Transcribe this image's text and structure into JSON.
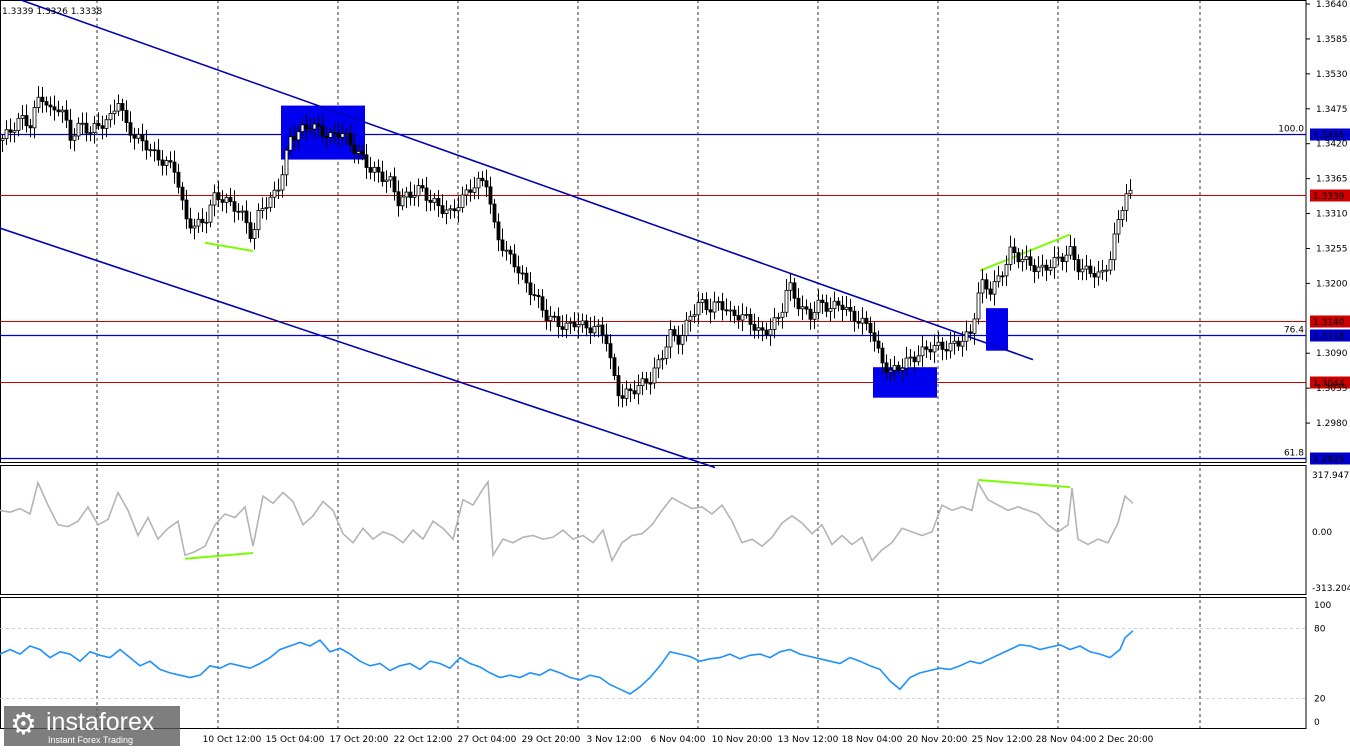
{
  "header": {
    "ohlc_text": "1.3339 1.3326 1.3338"
  },
  "watermark": {
    "logo_icon": "gear-icon",
    "brand": "instaforex",
    "tagline": "Instant Forex Trading"
  },
  "chart_data": [
    {
      "type": "candlestick",
      "panel": "price",
      "ylim": [
        1.2925,
        1.364
      ],
      "yticks": [
        "1.3640",
        "1.3585",
        "1.3530",
        "1.3475",
        "1.3420",
        "1.3365",
        "1.3310",
        "1.3255",
        "1.3200",
        "1.3090",
        "1.3035",
        "1.2980"
      ],
      "horizontal_lines": [
        {
          "value": 1.3435,
          "label": "1.3435",
          "fib": "100.0",
          "color": "#0000cc"
        },
        {
          "value": 1.3339,
          "label": "1.3339",
          "color": "#cc0000"
        },
        {
          "value": 1.314,
          "label": "1.3140",
          "color": "#cc0000"
        },
        {
          "value": 1.3118,
          "label": "1.3118",
          "fib": "76.4",
          "color": "#0000cc"
        },
        {
          "value": 1.3044,
          "label": "1.3044",
          "color": "#cc0000"
        },
        {
          "value": 1.2925,
          "label": "1.2925",
          "fib": "61.8",
          "color": "#0000cc"
        }
      ],
      "x_labels": [
        "10 Oct 12:00",
        "15 Oct 04:00",
        "17 Oct 20:00",
        "22 Oct 12:00",
        "27 Oct 04:00",
        "29 Oct 20:00",
        "3 Nov 12:00",
        "6 Nov 04:00",
        "10 Nov 20:00",
        "13 Nov 12:00",
        "18 Nov 04:00",
        "20 Nov 20:00",
        "25 Nov 12:00",
        "28 Nov 04:00",
        "2 Dec 20:00"
      ],
      "close_path": [
        [
          0,
          1.3425
        ],
        [
          10,
          1.344
        ],
        [
          20,
          1.346
        ],
        [
          30,
          1.345
        ],
        [
          40,
          1.35
        ],
        [
          50,
          1.347
        ],
        [
          60,
          1.348
        ],
        [
          70,
          1.343
        ],
        [
          80,
          1.345
        ],
        [
          90,
          1.344
        ],
        [
          100,
          1.345
        ],
        [
          110,
          1.346
        ],
        [
          118,
          1.349
        ],
        [
          125,
          1.345
        ],
        [
          135,
          1.343
        ],
        [
          145,
          1.342
        ],
        [
          155,
          1.34
        ],
        [
          165,
          1.339
        ],
        [
          175,
          1.338
        ],
        [
          185,
          1.33
        ],
        [
          195,
          1.329
        ],
        [
          205,
          1.33
        ],
        [
          215,
          1.334
        ],
        [
          225,
          1.333
        ],
        [
          235,
          1.332
        ],
        [
          245,
          1.33
        ],
        [
          252,
          1.327
        ],
        [
          260,
          1.332
        ],
        [
          270,
          1.333
        ],
        [
          280,
          1.336
        ],
        [
          290,
          1.343
        ],
        [
          300,
          1.344
        ],
        [
          310,
          1.345
        ],
        [
          320,
          1.344
        ],
        [
          330,
          1.343
        ],
        [
          340,
          1.344
        ],
        [
          350,
          1.342
        ],
        [
          360,
          1.34
        ],
        [
          370,
          1.338
        ],
        [
          380,
          1.337
        ],
        [
          390,
          1.336
        ],
        [
          398,
          1.333
        ],
        [
          410,
          1.334
        ],
        [
          420,
          1.335
        ],
        [
          430,
          1.333
        ],
        [
          440,
          1.332
        ],
        [
          450,
          1.331
        ],
        [
          460,
          1.333
        ],
        [
          470,
          1.335
        ],
        [
          480,
          1.336
        ],
        [
          486,
          1.336
        ],
        [
          495,
          1.328
        ],
        [
          505,
          1.325
        ],
        [
          515,
          1.323
        ],
        [
          525,
          1.32
        ],
        [
          535,
          1.318
        ],
        [
          545,
          1.315
        ],
        [
          555,
          1.314
        ],
        [
          565,
          1.313
        ],
        [
          575,
          1.314
        ],
        [
          585,
          1.313
        ],
        [
          595,
          1.313
        ],
        [
          605,
          1.312
        ],
        [
          612,
          1.306
        ],
        [
          620,
          1.302
        ],
        [
          630,
          1.303
        ],
        [
          640,
          1.304
        ],
        [
          650,
          1.305
        ],
        [
          660,
          1.308
        ],
        [
          670,
          1.312
        ],
        [
          680,
          1.311
        ],
        [
          690,
          1.315
        ],
        [
          700,
          1.317
        ],
        [
          710,
          1.316
        ],
        [
          720,
          1.317
        ],
        [
          730,
          1.315
        ],
        [
          740,
          1.315
        ],
        [
          750,
          1.314
        ],
        [
          760,
          1.312
        ],
        [
          770,
          1.313
        ],
        [
          780,
          1.315
        ],
        [
          788,
          1.32
        ],
        [
          800,
          1.316
        ],
        [
          810,
          1.315
        ],
        [
          820,
          1.317
        ],
        [
          830,
          1.316
        ],
        [
          840,
          1.317
        ],
        [
          850,
          1.315
        ],
        [
          860,
          1.314
        ],
        [
          870,
          1.313
        ],
        [
          880,
          1.308
        ],
        [
          890,
          1.306
        ],
        [
          900,
          1.307
        ],
        [
          910,
          1.308
        ],
        [
          920,
          1.309
        ],
        [
          930,
          1.31
        ],
        [
          940,
          1.31
        ],
        [
          950,
          1.31
        ],
        [
          960,
          1.311
        ],
        [
          970,
          1.312
        ],
        [
          980,
          1.32
        ],
        [
          990,
          1.319
        ],
        [
          1000,
          1.321
        ],
        [
          1010,
          1.325
        ],
        [
          1020,
          1.324
        ],
        [
          1030,
          1.323
        ],
        [
          1040,
          1.322
        ],
        [
          1050,
          1.323
        ],
        [
          1060,
          1.324
        ],
        [
          1070,
          1.325
        ],
        [
          1080,
          1.322
        ],
        [
          1090,
          1.322
        ],
        [
          1100,
          1.321
        ],
        [
          1110,
          1.324
        ],
        [
          1118,
          1.33
        ],
        [
          1125,
          1.334
        ],
        [
          1133,
          1.3338
        ]
      ],
      "channel_lines": [
        {
          "from": [
            0,
            1.3658
          ],
          "to": [
            1033,
            1.308
          ]
        },
        {
          "from": [
            0,
            1.3287
          ],
          "to": [
            715,
            1.291
          ]
        }
      ],
      "boxes": [
        {
          "x": [
            281,
            365
          ],
          "y": [
            1.3395,
            1.348
          ]
        },
        {
          "x": [
            873,
            937
          ],
          "y": [
            1.302,
            1.3068
          ]
        },
        {
          "x": [
            986,
            1008
          ],
          "y": [
            1.3094,
            1.3161
          ]
        }
      ],
      "divergence_lines": [
        {
          "from": [
            205,
            1.3264
          ],
          "to": [
            253,
            1.3251
          ]
        },
        {
          "from": [
            980,
            1.322
          ],
          "to": [
            1070,
            1.3277
          ]
        }
      ]
    },
    {
      "type": "line",
      "panel": "cci",
      "ylim": [
        -313.204,
        317.9471
      ],
      "yticks": [
        "317.9471",
        "0.00",
        "-313.204"
      ],
      "x": [
        0,
        10,
        20,
        30,
        38,
        48,
        58,
        68,
        78,
        88,
        98,
        108,
        118,
        128,
        138,
        148,
        158,
        168,
        178,
        185,
        195,
        205,
        215,
        225,
        235,
        245,
        253,
        263,
        273,
        283,
        293,
        303,
        313,
        323,
        333,
        343,
        353,
        363,
        373,
        383,
        393,
        403,
        413,
        423,
        433,
        443,
        453,
        463,
        473,
        483,
        488,
        493,
        503,
        513,
        523,
        533,
        543,
        553,
        563,
        573,
        583,
        593,
        603,
        612,
        622,
        632,
        642,
        652,
        662,
        672,
        682,
        692,
        702,
        712,
        722,
        732,
        742,
        752,
        762,
        772,
        782,
        792,
        802,
        812,
        822,
        832,
        842,
        852,
        862,
        872,
        882,
        892,
        902,
        912,
        922,
        932,
        942,
        952,
        962,
        972,
        978,
        988,
        998,
        1008,
        1018,
        1028,
        1038,
        1048,
        1058,
        1068,
        1072,
        1078,
        1088,
        1098,
        1108,
        1118,
        1125,
        1133
      ],
      "values": [
        120,
        110,
        130,
        100,
        275,
        150,
        40,
        30,
        60,
        140,
        40,
        70,
        220,
        120,
        -20,
        80,
        -40,
        20,
        60,
        -130,
        -110,
        -80,
        40,
        100,
        80,
        140,
        -80,
        200,
        160,
        220,
        170,
        40,
        90,
        170,
        120,
        -10,
        -60,
        20,
        -40,
        0,
        -20,
        -60,
        10,
        -40,
        60,
        20,
        -40,
        180,
        150,
        240,
        280,
        -130,
        -40,
        -60,
        -30,
        -20,
        -40,
        -30,
        10,
        -40,
        -20,
        -60,
        10,
        -160,
        -60,
        -20,
        -10,
        40,
        120,
        190,
        160,
        130,
        140,
        100,
        150,
        60,
        -60,
        -40,
        -80,
        -30,
        50,
        90,
        50,
        -10,
        40,
        -70,
        -20,
        -70,
        -30,
        -160,
        -100,
        -60,
        20,
        0,
        -20,
        0,
        150,
        120,
        140,
        120,
        275,
        180,
        150,
        120,
        140,
        120,
        100,
        40,
        0,
        40,
        245,
        -40,
        -70,
        -40,
        -60,
        50,
        200,
        160
      ]
    },
    {
      "type": "line",
      "panel": "rsi",
      "ylim": [
        0,
        100
      ],
      "yticks": [
        "100",
        "80",
        "20",
        "0"
      ],
      "levels": [
        80,
        20
      ],
      "x": [
        0,
        10,
        20,
        30,
        40,
        50,
        60,
        70,
        80,
        90,
        100,
        110,
        120,
        130,
        140,
        150,
        160,
        170,
        180,
        190,
        200,
        210,
        220,
        230,
        240,
        250,
        260,
        270,
        280,
        290,
        300,
        310,
        320,
        330,
        340,
        350,
        360,
        370,
        380,
        390,
        400,
        410,
        420,
        430,
        440,
        450,
        460,
        470,
        480,
        490,
        500,
        510,
        520,
        530,
        540,
        550,
        560,
        570,
        580,
        590,
        600,
        610,
        620,
        630,
        640,
        650,
        660,
        670,
        680,
        690,
        700,
        710,
        720,
        730,
        740,
        750,
        760,
        770,
        780,
        790,
        800,
        810,
        820,
        830,
        840,
        850,
        860,
        870,
        880,
        890,
        900,
        910,
        920,
        930,
        940,
        950,
        960,
        970,
        980,
        990,
        1000,
        1010,
        1020,
        1030,
        1040,
        1050,
        1060,
        1070,
        1080,
        1090,
        1100,
        1110,
        1120,
        1125,
        1133
      ],
      "values": [
        58,
        62,
        58,
        65,
        62,
        55,
        60,
        58,
        52,
        60,
        57,
        55,
        62,
        55,
        48,
        52,
        45,
        42,
        40,
        38,
        40,
        48,
        46,
        50,
        48,
        46,
        50,
        55,
        62,
        65,
        68,
        65,
        70,
        60,
        63,
        58,
        52,
        48,
        50,
        44,
        48,
        50,
        45,
        52,
        50,
        46,
        55,
        50,
        47,
        42,
        38,
        40,
        38,
        42,
        40,
        45,
        42,
        38,
        36,
        40,
        38,
        32,
        28,
        24,
        30,
        38,
        48,
        60,
        58,
        56,
        52,
        54,
        55,
        58,
        54,
        57,
        58,
        55,
        60,
        62,
        58,
        56,
        54,
        52,
        50,
        55,
        52,
        48,
        45,
        35,
        28,
        38,
        42,
        44,
        46,
        45,
        48,
        52,
        50,
        54,
        58,
        62,
        66,
        65,
        62,
        64,
        66,
        62,
        65,
        60,
        58,
        55,
        62,
        72,
        78
      ]
    }
  ]
}
